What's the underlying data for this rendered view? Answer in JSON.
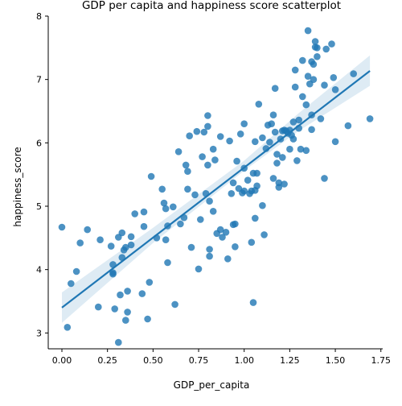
{
  "chart_data": {
    "type": "scatter",
    "title": "GDP per capita and happiness score scatterplot",
    "xlabel": "GDP_per_capita",
    "ylabel": "happiness_score",
    "xlim": [
      -0.075,
      1.76
    ],
    "ylim": [
      2.75,
      8.0
    ],
    "xticks": [
      0.0,
      0.25,
      0.5,
      0.75,
      1.0,
      1.25,
      1.5,
      1.75
    ],
    "xtick_labels": [
      "0.00",
      "0.25",
      "0.50",
      "0.75",
      "1.00",
      "1.25",
      "1.50",
      "1.75"
    ],
    "yticks": [
      3,
      4,
      5,
      6,
      7,
      8
    ],
    "ytick_labels": [
      "3",
      "4",
      "5",
      "6",
      "7",
      "8"
    ],
    "grid": false,
    "regression": {
      "x_range": [
        0.0,
        1.69
      ],
      "intercept": 3.4,
      "slope": 2.21,
      "ci_low": [
        [
          0.0,
          3.16
        ],
        [
          0.5,
          4.42
        ],
        [
          1.0,
          5.56
        ],
        [
          1.3,
          6.19
        ],
        [
          1.69,
          6.9
        ]
      ],
      "ci_high": [
        [
          0.0,
          3.64
        ],
        [
          0.5,
          4.66
        ],
        [
          1.0,
          5.72
        ],
        [
          1.3,
          6.47
        ],
        [
          1.69,
          7.38
        ]
      ]
    },
    "colors": {
      "points": "#1f77b4",
      "line": "#1f77b4",
      "ci_band": "#1f77b4"
    },
    "points": [
      [
        0.0,
        4.67
      ],
      [
        0.03,
        3.09
      ],
      [
        0.05,
        3.78
      ],
      [
        0.08,
        3.97
      ],
      [
        0.1,
        4.42
      ],
      [
        0.14,
        4.63
      ],
      [
        0.2,
        3.41
      ],
      [
        0.21,
        4.47
      ],
      [
        0.27,
        4.37
      ],
      [
        0.28,
        4.08
      ],
      [
        0.28,
        3.95
      ],
      [
        0.28,
        3.93
      ],
      [
        0.29,
        3.38
      ],
      [
        0.31,
        2.85
      ],
      [
        0.31,
        4.51
      ],
      [
        0.32,
        3.6
      ],
      [
        0.33,
        4.58
      ],
      [
        0.33,
        4.19
      ],
      [
        0.34,
        4.31
      ],
      [
        0.35,
        4.35
      ],
      [
        0.35,
        3.2
      ],
      [
        0.36,
        3.33
      ],
      [
        0.36,
        3.66
      ],
      [
        0.38,
        4.52
      ],
      [
        0.38,
        4.39
      ],
      [
        0.4,
        4.88
      ],
      [
        0.44,
        3.62
      ],
      [
        0.45,
        4.91
      ],
      [
        0.45,
        4.68
      ],
      [
        0.47,
        3.22
      ],
      [
        0.48,
        3.8
      ],
      [
        0.49,
        5.47
      ],
      [
        0.52,
        4.5
      ],
      [
        0.55,
        5.27
      ],
      [
        0.56,
        5.05
      ],
      [
        0.57,
        4.47
      ],
      [
        0.57,
        4.96
      ],
      [
        0.58,
        4.69
      ],
      [
        0.58,
        4.11
      ],
      [
        0.61,
        4.99
      ],
      [
        0.62,
        3.45
      ],
      [
        0.64,
        5.86
      ],
      [
        0.65,
        4.72
      ],
      [
        0.67,
        4.82
      ],
      [
        0.68,
        5.65
      ],
      [
        0.69,
        5.55
      ],
      [
        0.69,
        5.27
      ],
      [
        0.7,
        6.11
      ],
      [
        0.71,
        4.35
      ],
      [
        0.73,
        5.18
      ],
      [
        0.74,
        6.18
      ],
      [
        0.75,
        4.01
      ],
      [
        0.76,
        4.79
      ],
      [
        0.77,
        5.78
      ],
      [
        0.78,
        6.17
      ],
      [
        0.79,
        5.2
      ],
      [
        0.8,
        6.43
      ],
      [
        0.8,
        6.26
      ],
      [
        0.8,
        5.65
      ],
      [
        0.81,
        4.21
      ],
      [
        0.81,
        4.32
      ],
      [
        0.81,
        5.08
      ],
      [
        0.83,
        4.92
      ],
      [
        0.83,
        5.9
      ],
      [
        0.84,
        5.73
      ],
      [
        0.85,
        4.57
      ],
      [
        0.87,
        6.1
      ],
      [
        0.87,
        4.63
      ],
      [
        0.88,
        4.51
      ],
      [
        0.9,
        4.59
      ],
      [
        0.91,
        4.17
      ],
      [
        0.92,
        6.03
      ],
      [
        0.93,
        5.2
      ],
      [
        0.94,
        5.37
      ],
      [
        0.94,
        4.71
      ],
      [
        0.95,
        4.72
      ],
      [
        0.95,
        4.36
      ],
      [
        0.96,
        5.71
      ],
      [
        0.97,
        5.28
      ],
      [
        0.98,
        6.14
      ],
      [
        0.99,
        5.21
      ],
      [
        1.0,
        5.6
      ],
      [
        1.0,
        5.24
      ],
      [
        1.0,
        6.3
      ],
      [
        1.02,
        5.41
      ],
      [
        1.03,
        5.2
      ],
      [
        1.04,
        5.24
      ],
      [
        1.04,
        4.43
      ],
      [
        1.05,
        5.52
      ],
      [
        1.05,
        3.48
      ],
      [
        1.06,
        6.02
      ],
      [
        1.06,
        4.81
      ],
      [
        1.06,
        5.25
      ],
      [
        1.07,
        5.32
      ],
      [
        1.07,
        5.52
      ],
      [
        1.08,
        6.61
      ],
      [
        1.1,
        5.01
      ],
      [
        1.1,
        6.08
      ],
      [
        1.11,
        4.55
      ],
      [
        1.12,
        5.91
      ],
      [
        1.13,
        6.28
      ],
      [
        1.14,
        6.01
      ],
      [
        1.15,
        6.3
      ],
      [
        1.16,
        6.44
      ],
      [
        1.16,
        5.44
      ],
      [
        1.17,
        6.86
      ],
      [
        1.17,
        6.17
      ],
      [
        1.18,
        5.82
      ],
      [
        1.18,
        5.68
      ],
      [
        1.19,
        5.3
      ],
      [
        1.19,
        5.37
      ],
      [
        1.2,
        6.06
      ],
      [
        1.21,
        6.19
      ],
      [
        1.21,
        5.77
      ],
      [
        1.22,
        6.2
      ],
      [
        1.22,
        5.35
      ],
      [
        1.23,
        6.19
      ],
      [
        1.24,
        6.15
      ],
      [
        1.25,
        5.9
      ],
      [
        1.25,
        6.2
      ],
      [
        1.26,
        6.12
      ],
      [
        1.27,
        6.33
      ],
      [
        1.27,
        6.06
      ],
      [
        1.28,
        6.88
      ],
      [
        1.28,
        7.15
      ],
      [
        1.29,
        5.72
      ],
      [
        1.3,
        6.23
      ],
      [
        1.3,
        6.36
      ],
      [
        1.31,
        5.9
      ],
      [
        1.32,
        6.73
      ],
      [
        1.32,
        7.3
      ],
      [
        1.34,
        6.6
      ],
      [
        1.34,
        5.88
      ],
      [
        1.35,
        7.77
      ],
      [
        1.35,
        7.05
      ],
      [
        1.36,
        6.93
      ],
      [
        1.37,
        6.21
      ],
      [
        1.37,
        7.28
      ],
      [
        1.37,
        6.44
      ],
      [
        1.38,
        7.24
      ],
      [
        1.38,
        7.0
      ],
      [
        1.39,
        7.51
      ],
      [
        1.39,
        7.6
      ],
      [
        1.4,
        7.36
      ],
      [
        1.4,
        7.5
      ],
      [
        1.42,
        6.38
      ],
      [
        1.44,
        6.91
      ],
      [
        1.44,
        5.44
      ],
      [
        1.45,
        7.48
      ],
      [
        1.48,
        7.56
      ],
      [
        1.49,
        7.03
      ],
      [
        1.5,
        6.02
      ],
      [
        1.5,
        6.84
      ],
      [
        1.57,
        6.27
      ],
      [
        1.6,
        7.09
      ],
      [
        1.69,
        6.38
      ]
    ]
  }
}
